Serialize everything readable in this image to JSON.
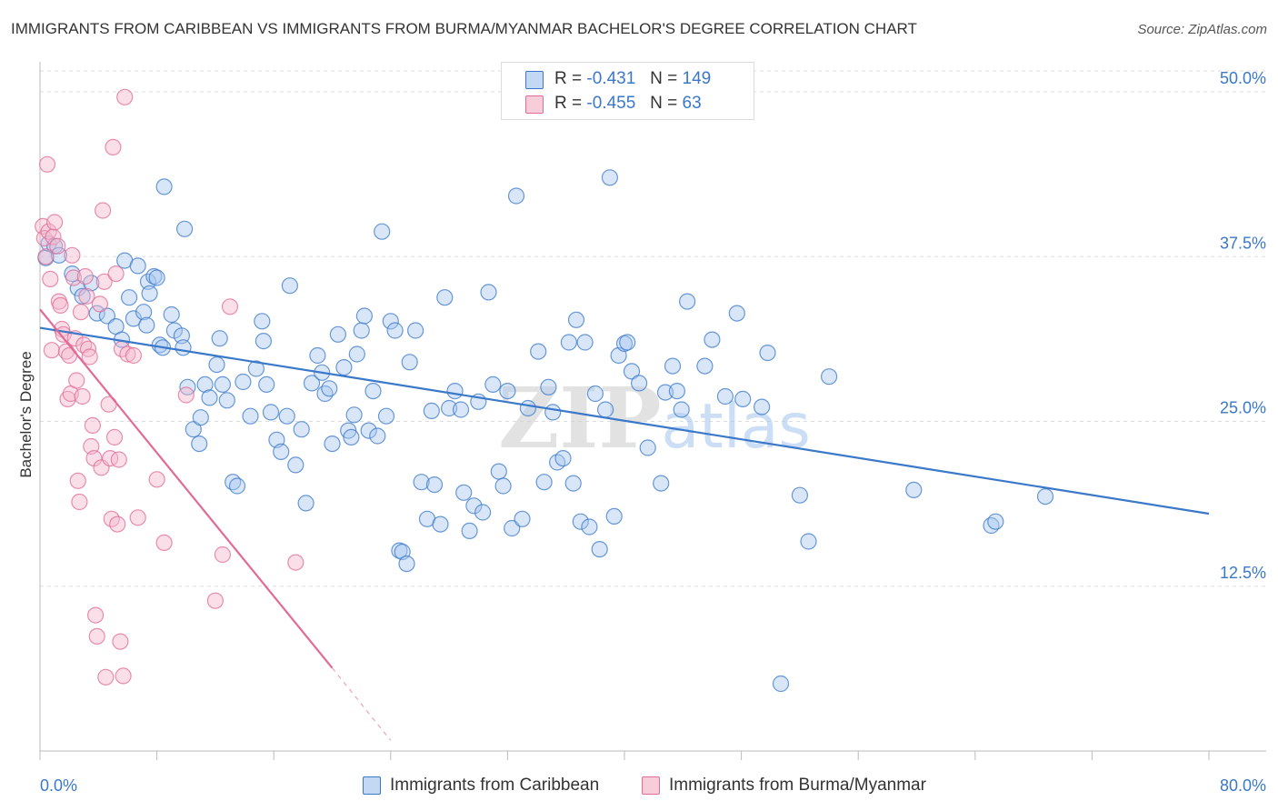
{
  "title": "IMMIGRANTS FROM CARIBBEAN VS IMMIGRANTS FROM BURMA/MYANMAR BACHELOR'S DEGREE CORRELATION CHART",
  "source": "Source: ZipAtlas.com",
  "watermark": "ZIPatlas",
  "colors": {
    "blue": "#3a78c9",
    "blue_fill": "#a9c8ef",
    "pink": "#e06b96",
    "pink_fill": "#f4b7cb",
    "grid": "#dddddd"
  },
  "legend": [
    {
      "r_label": "R =",
      "r_value": "-0.431",
      "n_label": "N =",
      "n_value": "149"
    },
    {
      "r_label": "R =",
      "r_value": "-0.455",
      "n_label": "N =",
      "n_value": "63"
    }
  ],
  "chart_data": {
    "type": "scatter",
    "title": "IMMIGRANTS FROM CARIBBEAN VS IMMIGRANTS FROM BURMA/MYANMAR BACHELOR'S DEGREE CORRELATION CHART",
    "xlabel": "",
    "ylabel": "Bachelor's Degree",
    "xlim": [
      0,
      80
    ],
    "ylim": [
      0,
      52
    ],
    "x_tick_labels": [
      "0.0%",
      "80.0%"
    ],
    "y_ticks": [
      12.5,
      25.0,
      37.5,
      50.0
    ],
    "y_tick_labels": [
      "12.5%",
      "25.0%",
      "37.5%",
      "50.0%"
    ],
    "grid": true,
    "legend_position": "top-center",
    "series": [
      {
        "name": "Immigrants from Caribbean",
        "color": "#3a78c9",
        "r": -0.431,
        "n": 149,
        "trend": {
          "x0": 0,
          "y0": 32.1,
          "x1": 80,
          "y1": 18.0
        },
        "points": [
          [
            0.4,
            37.4
          ],
          [
            0.6,
            38.5
          ],
          [
            1.0,
            38.3
          ],
          [
            1.3,
            37.6
          ],
          [
            2.2,
            36.2
          ],
          [
            2.6,
            35.1
          ],
          [
            2.9,
            34.5
          ],
          [
            3.5,
            35.5
          ],
          [
            3.9,
            33.2
          ],
          [
            4.6,
            33.0
          ],
          [
            5.2,
            32.2
          ],
          [
            5.6,
            31.2
          ],
          [
            5.8,
            37.2
          ],
          [
            6.1,
            34.4
          ],
          [
            6.4,
            32.8
          ],
          [
            6.7,
            36.8
          ],
          [
            7.1,
            33.3
          ],
          [
            7.3,
            32.3
          ],
          [
            7.4,
            35.6
          ],
          [
            7.5,
            34.7
          ],
          [
            7.8,
            36.0
          ],
          [
            8.0,
            35.9
          ],
          [
            8.2,
            30.8
          ],
          [
            8.4,
            30.6
          ],
          [
            8.5,
            42.8
          ],
          [
            9.0,
            33.1
          ],
          [
            9.2,
            31.9
          ],
          [
            9.7,
            31.5
          ],
          [
            9.8,
            30.6
          ],
          [
            9.9,
            39.6
          ],
          [
            10.1,
            27.6
          ],
          [
            10.5,
            24.4
          ],
          [
            10.9,
            23.3
          ],
          [
            11.0,
            25.3
          ],
          [
            11.3,
            27.8
          ],
          [
            11.6,
            26.8
          ],
          [
            12.1,
            29.3
          ],
          [
            12.3,
            31.3
          ],
          [
            12.5,
            27.8
          ],
          [
            12.8,
            26.6
          ],
          [
            13.2,
            20.4
          ],
          [
            13.5,
            20.1
          ],
          [
            13.9,
            28.0
          ],
          [
            14.4,
            25.4
          ],
          [
            14.8,
            29.0
          ],
          [
            15.2,
            32.6
          ],
          [
            15.3,
            31.1
          ],
          [
            15.5,
            27.8
          ],
          [
            15.8,
            25.7
          ],
          [
            16.2,
            23.6
          ],
          [
            16.5,
            22.7
          ],
          [
            16.9,
            25.4
          ],
          [
            17.1,
            35.3
          ],
          [
            17.5,
            21.7
          ],
          [
            17.9,
            24.4
          ],
          [
            18.2,
            18.8
          ],
          [
            18.6,
            27.9
          ],
          [
            19.0,
            30.0
          ],
          [
            19.3,
            28.7
          ],
          [
            19.5,
            27.1
          ],
          [
            19.8,
            27.5
          ],
          [
            20.0,
            23.3
          ],
          [
            20.4,
            31.6
          ],
          [
            20.8,
            29.1
          ],
          [
            21.1,
            24.3
          ],
          [
            21.3,
            23.8
          ],
          [
            21.5,
            25.5
          ],
          [
            21.7,
            30.1
          ],
          [
            22.0,
            31.9
          ],
          [
            22.2,
            33.0
          ],
          [
            22.5,
            24.3
          ],
          [
            22.8,
            27.3
          ],
          [
            23.1,
            23.9
          ],
          [
            23.4,
            39.4
          ],
          [
            23.7,
            25.4
          ],
          [
            24.0,
            32.6
          ],
          [
            24.3,
            31.9
          ],
          [
            24.6,
            15.2
          ],
          [
            24.8,
            15.1
          ],
          [
            25.1,
            14.2
          ],
          [
            25.3,
            29.5
          ],
          [
            25.7,
            31.9
          ],
          [
            26.1,
            20.4
          ],
          [
            26.5,
            17.6
          ],
          [
            26.8,
            25.8
          ],
          [
            27.0,
            20.2
          ],
          [
            27.4,
            17.2
          ],
          [
            27.7,
            34.4
          ],
          [
            28.0,
            26.0
          ],
          [
            28.4,
            27.3
          ],
          [
            28.8,
            25.9
          ],
          [
            29.0,
            19.6
          ],
          [
            29.4,
            16.7
          ],
          [
            29.7,
            18.6
          ],
          [
            30.0,
            26.5
          ],
          [
            30.3,
            18.1
          ],
          [
            30.7,
            34.8
          ],
          [
            31.0,
            27.8
          ],
          [
            31.4,
            21.2
          ],
          [
            31.7,
            20.1
          ],
          [
            32.0,
            27.3
          ],
          [
            32.3,
            16.9
          ],
          [
            32.6,
            42.1
          ],
          [
            33.0,
            17.6
          ],
          [
            33.4,
            26.0
          ],
          [
            34.1,
            30.3
          ],
          [
            34.5,
            20.4
          ],
          [
            34.8,
            27.6
          ],
          [
            35.1,
            25.7
          ],
          [
            35.4,
            21.9
          ],
          [
            35.8,
            22.2
          ],
          [
            36.2,
            31.0
          ],
          [
            36.5,
            20.3
          ],
          [
            36.7,
            32.7
          ],
          [
            37.0,
            17.4
          ],
          [
            37.3,
            31.0
          ],
          [
            37.6,
            17.0
          ],
          [
            38.0,
            27.1
          ],
          [
            38.3,
            15.3
          ],
          [
            38.7,
            25.9
          ],
          [
            39.0,
            43.5
          ],
          [
            39.3,
            17.8
          ],
          [
            39.6,
            30.0
          ],
          [
            40.0,
            30.9
          ],
          [
            40.2,
            31.0
          ],
          [
            40.5,
            28.8
          ],
          [
            41.0,
            27.9
          ],
          [
            41.6,
            23.0
          ],
          [
            42.5,
            20.3
          ],
          [
            42.8,
            27.2
          ],
          [
            43.3,
            29.2
          ],
          [
            43.6,
            27.3
          ],
          [
            43.9,
            25.9
          ],
          [
            44.3,
            34.1
          ],
          [
            45.5,
            29.2
          ],
          [
            46.0,
            31.2
          ],
          [
            46.9,
            26.9
          ],
          [
            47.7,
            33.2
          ],
          [
            48.1,
            26.7
          ],
          [
            49.4,
            26.1
          ],
          [
            49.8,
            30.2
          ],
          [
            50.7,
            5.1
          ],
          [
            52.0,
            19.4
          ],
          [
            52.6,
            15.9
          ],
          [
            54.0,
            28.4
          ],
          [
            59.8,
            19.8
          ],
          [
            65.1,
            17.1
          ],
          [
            65.4,
            17.4
          ],
          [
            68.8,
            19.3
          ]
        ]
      },
      {
        "name": "Immigrants from Burma/Myanmar",
        "color": "#e06b96",
        "r": -0.455,
        "n": 63,
        "trend": {
          "x0": 0,
          "y0": 33.5,
          "x1": 20.0,
          "y1": 6.3
        },
        "trend_dashed_extension": {
          "x0": 20.0,
          "y0": 6.3,
          "x1": 24.0,
          "y1": 0.8
        },
        "points": [
          [
            0.2,
            39.8
          ],
          [
            0.3,
            38.9
          ],
          [
            0.4,
            37.5
          ],
          [
            0.5,
            44.5
          ],
          [
            0.6,
            39.4
          ],
          [
            0.7,
            35.8
          ],
          [
            0.8,
            30.4
          ],
          [
            0.9,
            39.0
          ],
          [
            1.0,
            40.1
          ],
          [
            1.2,
            38.3
          ],
          [
            1.3,
            34.1
          ],
          [
            1.4,
            33.8
          ],
          [
            1.5,
            32.0
          ],
          [
            1.6,
            31.6
          ],
          [
            1.8,
            30.3
          ],
          [
            1.9,
            26.7
          ],
          [
            2.0,
            30.0
          ],
          [
            2.1,
            27.1
          ],
          [
            2.2,
            37.6
          ],
          [
            2.3,
            35.9
          ],
          [
            2.4,
            31.3
          ],
          [
            2.5,
            28.1
          ],
          [
            2.6,
            20.5
          ],
          [
            2.7,
            18.9
          ],
          [
            2.8,
            33.3
          ],
          [
            2.9,
            26.9
          ],
          [
            3.0,
            30.8
          ],
          [
            3.1,
            36.0
          ],
          [
            3.2,
            34.5
          ],
          [
            3.3,
            30.5
          ],
          [
            3.4,
            29.9
          ],
          [
            3.5,
            23.1
          ],
          [
            3.6,
            24.7
          ],
          [
            3.7,
            22.2
          ],
          [
            3.8,
            10.3
          ],
          [
            3.9,
            8.7
          ],
          [
            4.1,
            33.9
          ],
          [
            4.2,
            21.5
          ],
          [
            4.3,
            41.0
          ],
          [
            4.4,
            35.6
          ],
          [
            4.5,
            5.6
          ],
          [
            4.7,
            26.3
          ],
          [
            4.8,
            22.2
          ],
          [
            4.9,
            17.6
          ],
          [
            5.0,
            45.8
          ],
          [
            5.1,
            23.8
          ],
          [
            5.2,
            36.2
          ],
          [
            5.3,
            17.2
          ],
          [
            5.4,
            22.1
          ],
          [
            5.5,
            8.3
          ],
          [
            5.6,
            30.5
          ],
          [
            5.7,
            5.7
          ],
          [
            5.8,
            49.6
          ],
          [
            6.0,
            30.1
          ],
          [
            6.4,
            30.0
          ],
          [
            6.7,
            17.7
          ],
          [
            8.0,
            20.6
          ],
          [
            8.5,
            15.8
          ],
          [
            10.0,
            27.0
          ],
          [
            12.0,
            11.4
          ],
          [
            12.5,
            14.9
          ],
          [
            13.0,
            33.7
          ],
          [
            17.5,
            14.3
          ]
        ]
      }
    ]
  },
  "bottom_legend": [
    {
      "label": "Immigrants from Caribbean"
    },
    {
      "label": "Immigrants from Burma/Myanmar"
    }
  ]
}
